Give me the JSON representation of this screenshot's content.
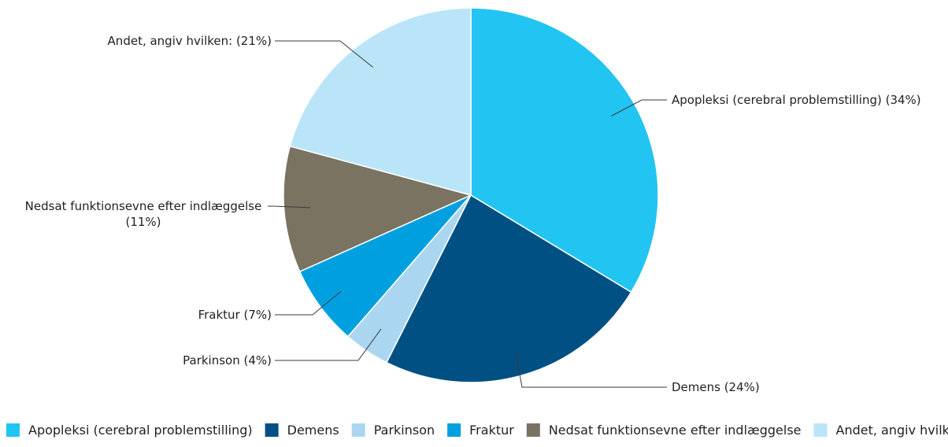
{
  "chart_data": {
    "type": "pie",
    "categories": [
      "Apopleksi (cerebral problemstilling)",
      "Demens",
      "Parkinson",
      "Fraktur",
      "Nedsat funktionsevne efter indlæggelse",
      "Andet, angiv hvilken:"
    ],
    "values": [
      34,
      24,
      4,
      7,
      11,
      21
    ],
    "unit": "%",
    "colors": [
      "#22c4f2",
      "#005083",
      "#aad6f2",
      "#00a0e0",
      "#7a7362",
      "#bae5f8"
    ],
    "labels": [
      "Apopleksi (cerebral problemstilling) (34%)",
      "Demens (24%)",
      "Parkinson (4%)",
      "Fraktur (7%)",
      "Nedsat funktionsevne efter indlæggelse|(11%)",
      "Andet, angiv hvilken: (21%)"
    ],
    "legend": [
      "Apopleksi (cerebral problemstilling)",
      "Demens",
      "Parkinson",
      "Fraktur",
      "Nedsat funktionsevne efter indlæggelse",
      "Andet, angiv hvilken:"
    ],
    "legend_position": "bottom",
    "start": "12 o'clock",
    "direction": "clockwise"
  }
}
